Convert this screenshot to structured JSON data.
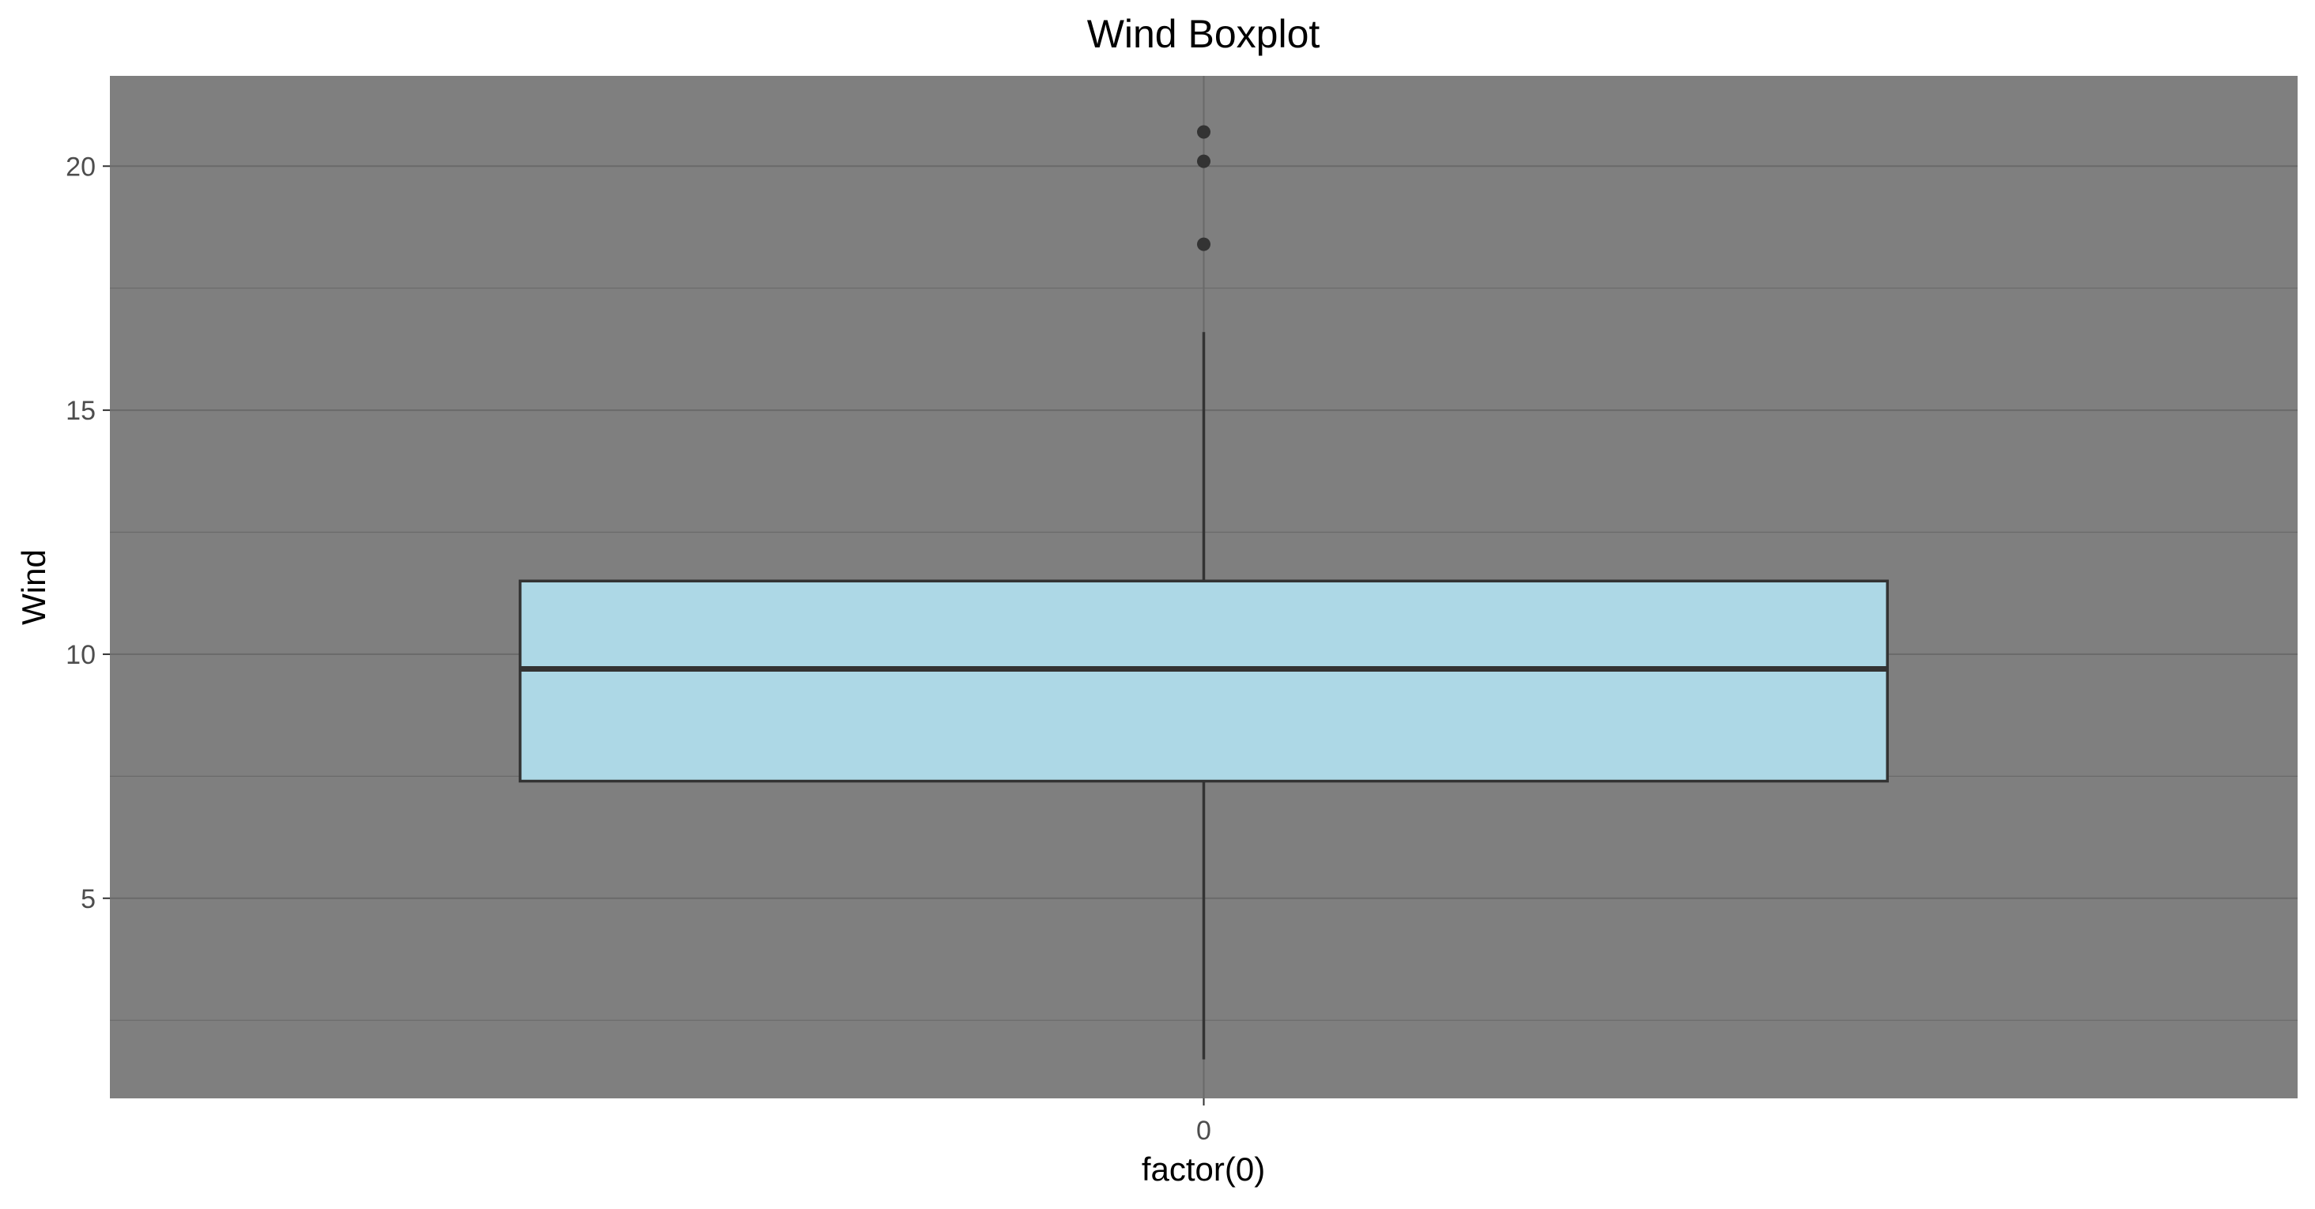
{
  "chart_data": {
    "type": "boxplot",
    "title": "Wind Boxplot",
    "xlabel": "factor(0)",
    "ylabel": "Wind",
    "categories": [
      "0"
    ],
    "ylim": [
      0.9,
      21.85
    ],
    "yticks": [
      5,
      10,
      15,
      20
    ],
    "yticks_minor": [
      2.5,
      7.5,
      12.5,
      17.5
    ],
    "grid": true,
    "boxes": [
      {
        "category": "0",
        "whisker_low": 1.7,
        "q1": 7.4,
        "median": 9.7,
        "q3": 11.5,
        "whisker_high": 16.6,
        "outliers": [
          18.4,
          20.1,
          20.7
        ]
      }
    ],
    "colors": {
      "panel_background": "#7f7f7f",
      "gridline": "#6a6a6a",
      "box_fill": "#add8e6",
      "box_stroke": "#333333",
      "outlier": "#333333"
    }
  }
}
